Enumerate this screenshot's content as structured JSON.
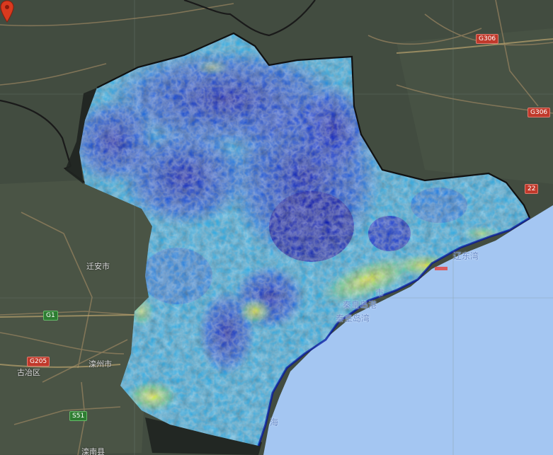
{
  "map": {
    "colors": {
      "land": "#424c40",
      "water": "#a4c6f2",
      "road": "#8c7c5c",
      "boundary": "#1a1a1a",
      "raster_low": "#0010c8",
      "raster_mid": "#28b4e6",
      "raster_high": "#e6e628",
      "marker": "#d93a1f"
    },
    "labels": {
      "qian_an": "迁安市",
      "luanzhou": "滦州市",
      "guye": "古冶区",
      "luannan": "滦南县",
      "qhd_port": "秦皇岛港",
      "qhd_bay": "秦皇岛湾",
      "liaodong_bay": "辽东湾",
      "city_suffix": "市",
      "hai": "海"
    },
    "shields": {
      "g306_a": "G306",
      "g306_b": "G306",
      "g1": "G1",
      "g205": "G205",
      "s51": "S51",
      "road_22": "22"
    },
    "icons": {
      "marker": "map-pin-icon"
    }
  }
}
